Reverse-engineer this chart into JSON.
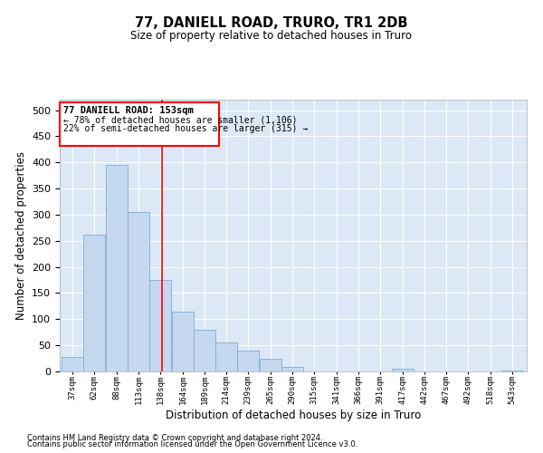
{
  "title1": "77, DANIELL ROAD, TRURO, TR1 2DB",
  "title2": "Size of property relative to detached houses in Truro",
  "xlabel": "Distribution of detached houses by size in Truro",
  "ylabel": "Number of detached properties",
  "footer1": "Contains HM Land Registry data © Crown copyright and database right 2024.",
  "footer2": "Contains public sector information licensed under the Open Government Licence v3.0.",
  "annotation_title": "77 DANIELL ROAD: 153sqm",
  "annotation_line1": "← 78% of detached houses are smaller (1,106)",
  "annotation_line2": "22% of semi-detached houses are larger (315) →",
  "bar_color": "#c5d8f0",
  "bar_edge_color": "#7aafd4",
  "bg_color": "#dce8f5",
  "red_line_x": 153,
  "categories": [
    "37sqm",
    "62sqm",
    "88sqm",
    "113sqm",
    "138sqm",
    "164sqm",
    "189sqm",
    "214sqm",
    "239sqm",
    "265sqm",
    "290sqm",
    "315sqm",
    "341sqm",
    "366sqm",
    "391sqm",
    "417sqm",
    "442sqm",
    "467sqm",
    "492sqm",
    "518sqm",
    "543sqm"
  ],
  "bin_left": [
    37,
    62,
    88,
    113,
    138,
    164,
    189,
    214,
    239,
    265,
    290,
    315,
    341,
    366,
    391,
    417,
    442,
    467,
    492,
    518,
    543
  ],
  "bin_width": 25,
  "values": [
    28,
    262,
    395,
    305,
    175,
    115,
    80,
    55,
    40,
    25,
    8,
    0,
    0,
    0,
    0,
    5,
    0,
    0,
    0,
    0,
    2
  ],
  "ylim": [
    0,
    520
  ],
  "yticks": [
    0,
    50,
    100,
    150,
    200,
    250,
    300,
    350,
    400,
    450,
    500
  ],
  "xlim_left": 35,
  "xlim_right": 572
}
